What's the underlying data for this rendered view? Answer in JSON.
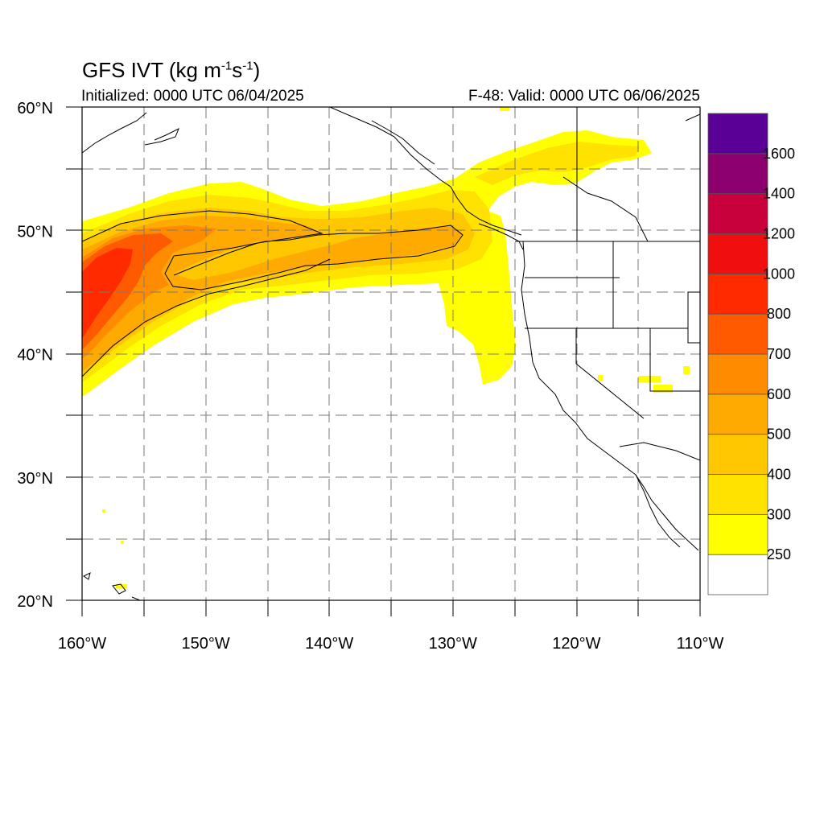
{
  "title": {
    "main": "GFS IVT (kg m",
    "sup1": "-1",
    "mid": "s",
    "sup2": "-1",
    "end": ")"
  },
  "subtitle": {
    "left": "Initialized: 0000 UTC 06/04/2025",
    "right": "F-48: Valid: 0000 UTC 06/06/2025"
  },
  "axes": {
    "lon_ticks": [
      {
        "value": -160,
        "label": "160°W"
      },
      {
        "value": -150,
        "label": "150°W"
      },
      {
        "value": -140,
        "label": "140°W"
      },
      {
        "value": -130,
        "label": "130°W"
      },
      {
        "value": -120,
        "label": "120°W"
      },
      {
        "value": -110,
        "label": "110°W"
      }
    ],
    "lat_ticks": [
      {
        "value": 60,
        "label": "60°N"
      },
      {
        "value": 50,
        "label": "50°N"
      },
      {
        "value": 40,
        "label": "40°N"
      },
      {
        "value": 30,
        "label": "30°N"
      },
      {
        "value": 20,
        "label": "20°N"
      }
    ],
    "lon_range": [
      -160,
      -110
    ],
    "lat_range": [
      20,
      60
    ],
    "grid": "dashed every 5 degrees"
  },
  "colorbar": {
    "colors": [
      "#ffffff",
      "#ffff00",
      "#ffe200",
      "#ffc700",
      "#ffaa00",
      "#ff8c00",
      "#ff5a00",
      "#ff2a00",
      "#f00f0f",
      "#c8003c",
      "#8c006e",
      "#5a0096"
    ],
    "labels": [
      "250",
      "300",
      "400",
      "500",
      "600",
      "700",
      "800",
      "1000",
      "1200",
      "1400",
      "1600"
    ]
  },
  "colors": {
    "land_line": "#000000",
    "grid_line": "#7a7a7a"
  }
}
